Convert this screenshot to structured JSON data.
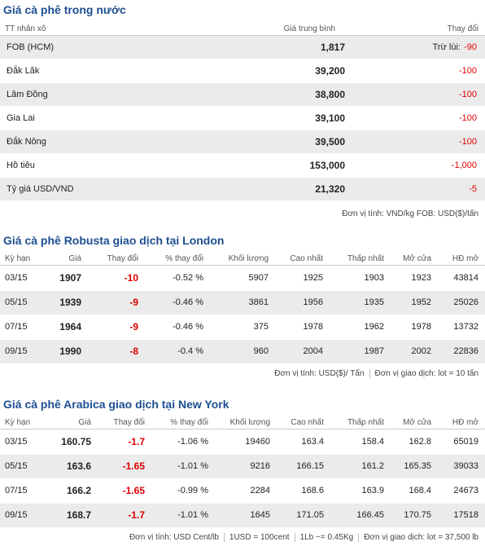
{
  "domestic": {
    "title": "Giá cà phê trong nước",
    "header": [
      "TT nhân xô",
      "Giá trung bình",
      "Thay đổi"
    ],
    "rows": [
      {
        "name": "FOB (HCM)",
        "price": "1,817",
        "change_prefix": "Trừ lùi:",
        "change": "-90"
      },
      {
        "name": "Đắk Lăk",
        "price": "39,200",
        "change": "-100"
      },
      {
        "name": "Lâm Đồng",
        "price": "38,800",
        "change": "-100"
      },
      {
        "name": "Gia Lai",
        "price": "39,100",
        "change": "-100"
      },
      {
        "name": "Đắk Nông",
        "price": "39,500",
        "change": "-100"
      },
      {
        "name": "Hồ tiêu",
        "price": "153,000",
        "change": "-1,000"
      },
      {
        "name": "Tỷ giá USD/VND",
        "price": "21,320",
        "change": "-5"
      }
    ],
    "footer": "Đơn vị tính: VND/kg  FOB: USD($)/tấn"
  },
  "robusta": {
    "title": "Giá cà phê Robusta giao dịch tại London",
    "header": [
      "Kỳ hạn",
      "Giá",
      "Thay đổi",
      "% thay đổi",
      "Khối lượng",
      "Cao nhất",
      "Thấp nhất",
      "Mở cửa",
      "HĐ mở"
    ],
    "rows": [
      [
        "03/15",
        "1907",
        "-10",
        "-0.52 %",
        "5907",
        "1925",
        "1903",
        "1923",
        "43814"
      ],
      [
        "05/15",
        "1939",
        "-9",
        "-0.46 %",
        "3861",
        "1956",
        "1935",
        "1952",
        "25026"
      ],
      [
        "07/15",
        "1964",
        "-9",
        "-0.46 %",
        "375",
        "1978",
        "1962",
        "1978",
        "13732"
      ],
      [
        "09/15",
        "1990",
        "-8",
        "-0.4 %",
        "960",
        "2004",
        "1987",
        "2002",
        "22836"
      ]
    ],
    "footer": [
      "Đơn vị tính: USD($)/ Tấn",
      "Đơn vị giao dịch: lot = 10 tấn"
    ]
  },
  "arabica": {
    "title": "Giá cà phê Arabica giao dịch tại New York",
    "header": [
      "Kỳ hạn",
      "Giá",
      "Thay đổi",
      "% thay đổi",
      "Khối lượng",
      "Cao nhất",
      "Thấp nhất",
      "Mở cửa",
      "HĐ mở"
    ],
    "rows": [
      [
        "03/15",
        "160.75",
        "-1.7",
        "-1.06 %",
        "19460",
        "163.4",
        "158.4",
        "162.8",
        "65019"
      ],
      [
        "05/15",
        "163.6",
        "-1.65",
        "-1.01 %",
        "9216",
        "166.15",
        "161.2",
        "165.35",
        "39033"
      ],
      [
        "07/15",
        "166.2",
        "-1.65",
        "-0.99 %",
        "2284",
        "168.6",
        "163.9",
        "168.4",
        "24673"
      ],
      [
        "09/15",
        "168.7",
        "-1.7",
        "-1.01 %",
        "1645",
        "171.05",
        "166.45",
        "170.75",
        "17518"
      ]
    ],
    "footer": [
      "Đơn vị tính: USD Cent/lb",
      "1USD = 100cent",
      "1Lb ~= 0.45Kg",
      "Đơn vị giao dịch: lot = 37,500 lb"
    ]
  }
}
